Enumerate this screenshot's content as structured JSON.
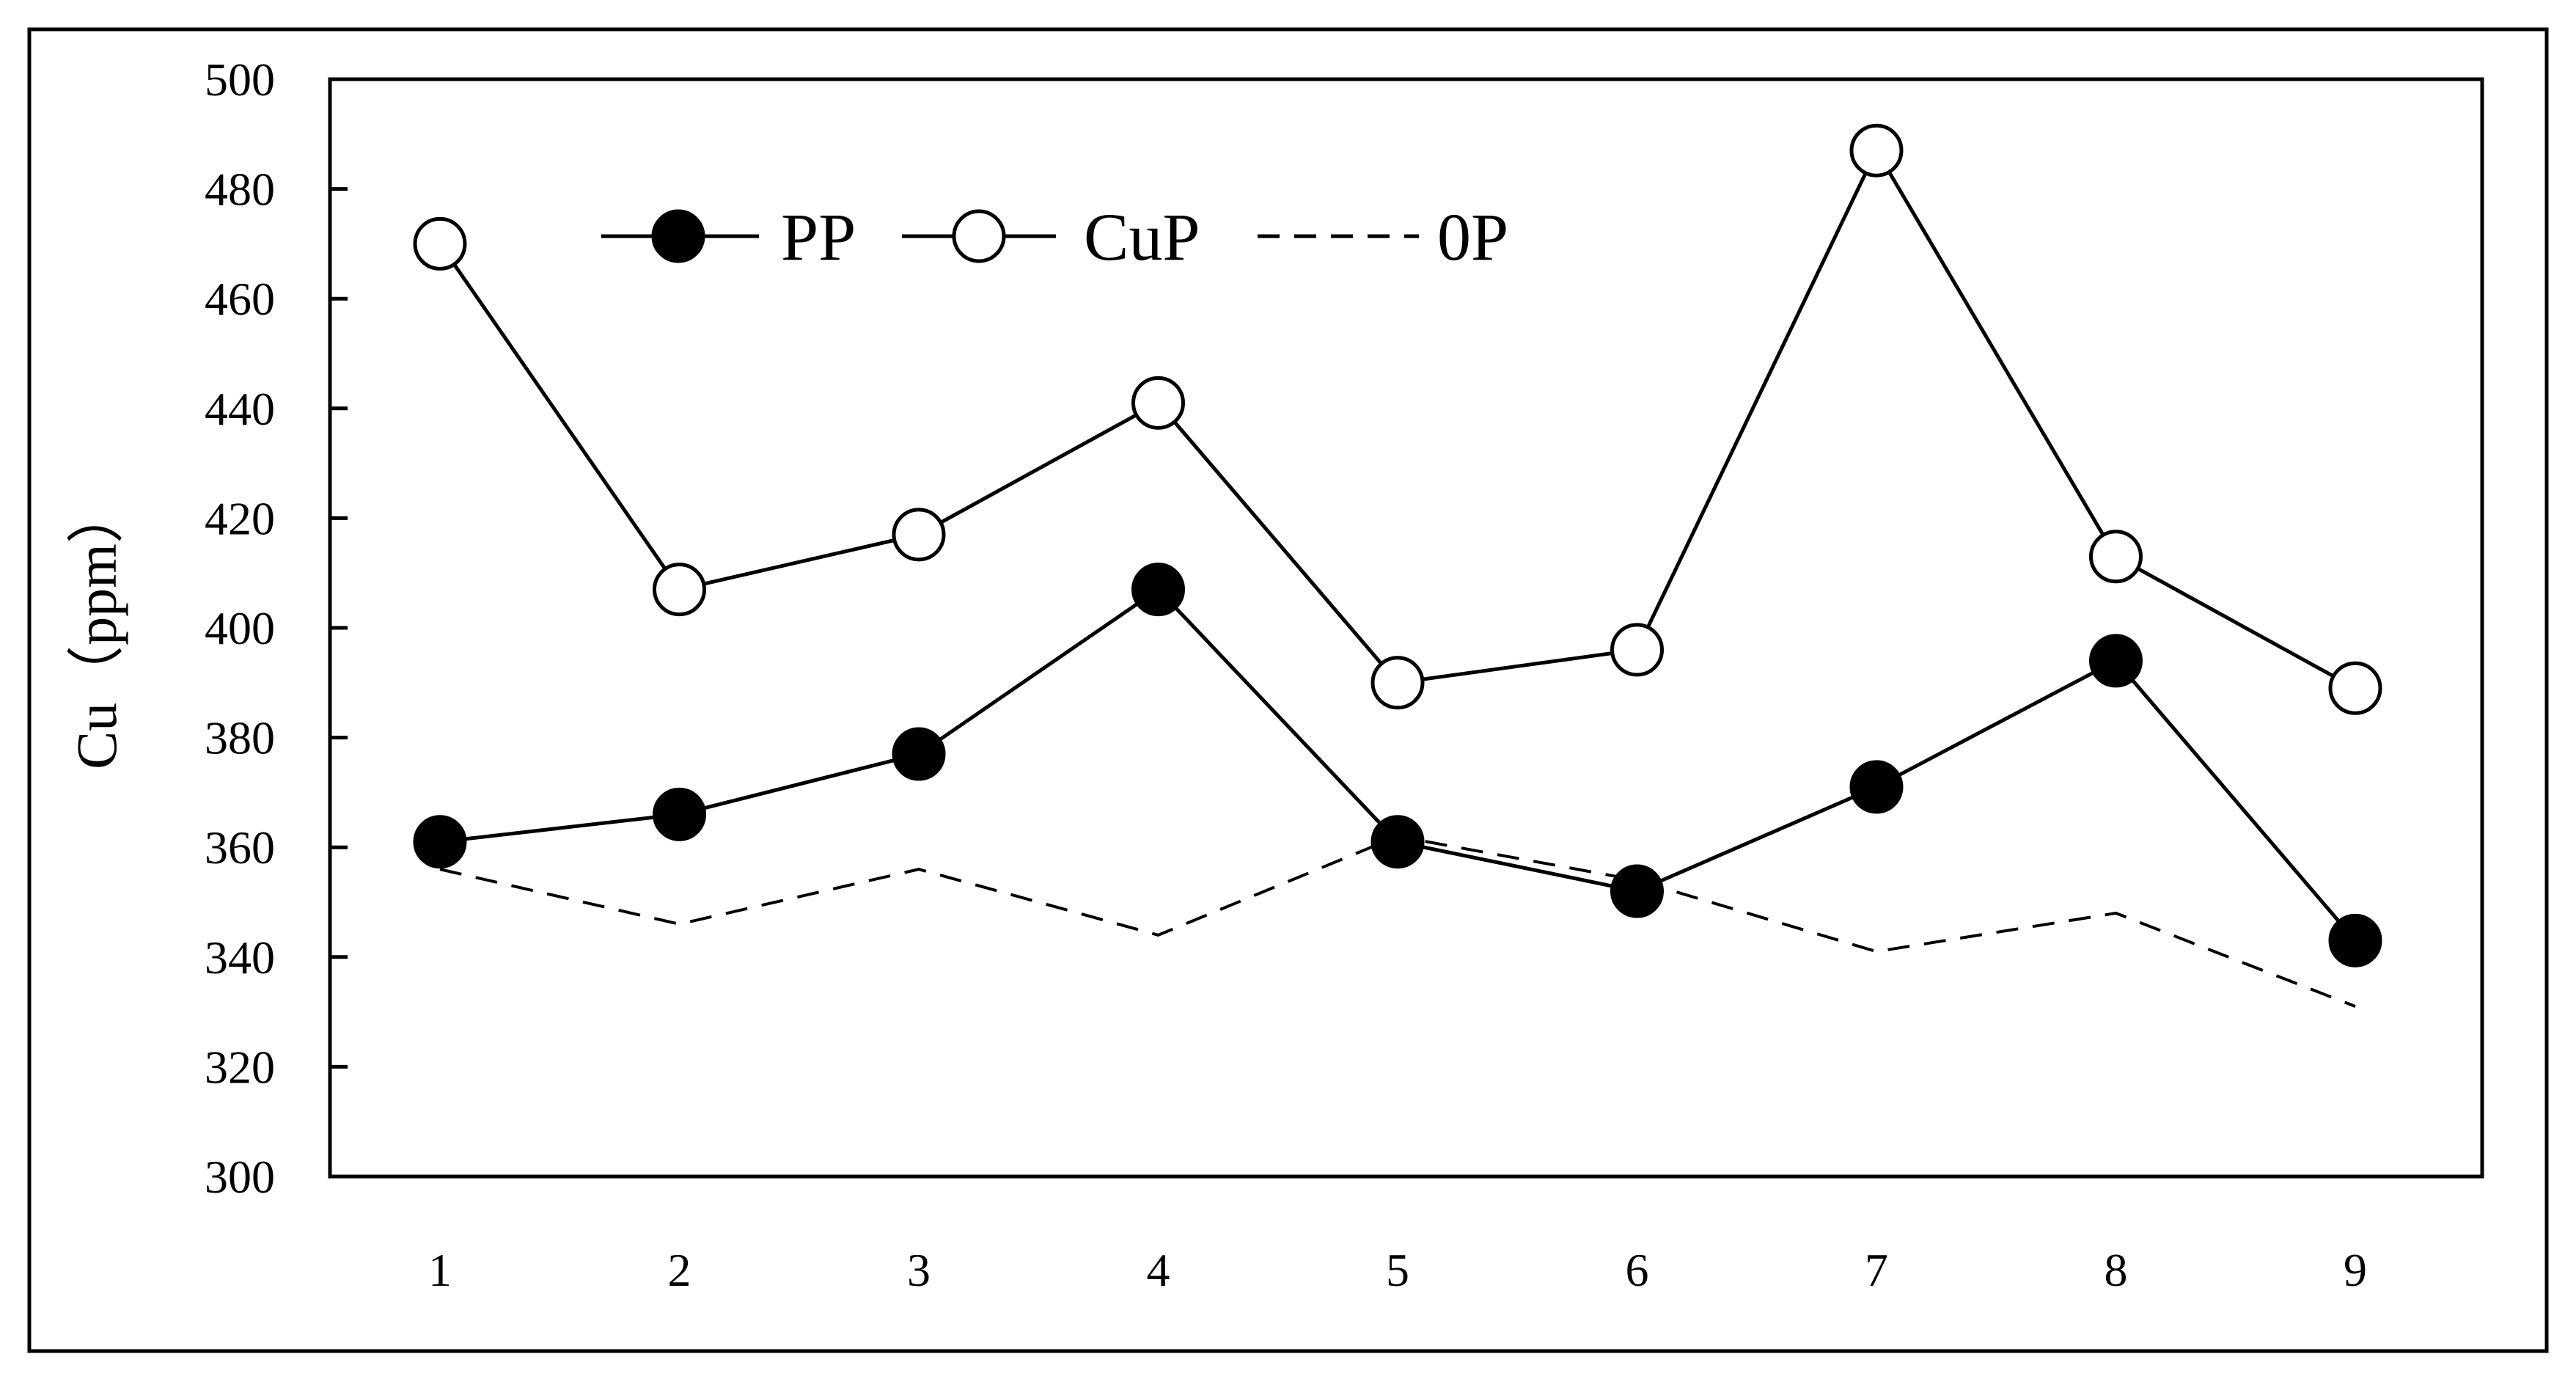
{
  "chart_data": {
    "type": "line",
    "title": "",
    "xlabel": "",
    "ylabel": "Cu（ppm）",
    "x": [
      1,
      2,
      3,
      4,
      5,
      6,
      7,
      8,
      9
    ],
    "xticks": [
      "1",
      "2",
      "3",
      "4",
      "5",
      "6",
      "7",
      "8",
      "9"
    ],
    "ylim": [
      300,
      500
    ],
    "yticks": [
      "300",
      "320",
      "340",
      "360",
      "380",
      "400",
      "420",
      "440",
      "460",
      "480",
      "500"
    ],
    "grid": false,
    "legend_position": "top-left",
    "series": [
      {
        "name": "PP",
        "marker": "filled-circle",
        "line": "solid",
        "values": [
          361,
          366,
          377,
          407,
          361,
          352,
          371,
          394,
          343
        ]
      },
      {
        "name": "CuP",
        "marker": "open-circle",
        "line": "solid",
        "values": [
          470,
          407,
          417,
          441,
          390,
          396,
          487,
          413,
          389
        ]
      },
      {
        "name": "0P",
        "marker": "none",
        "line": "dashed",
        "values": [
          356,
          346,
          356,
          344,
          362,
          354,
          341,
          348,
          331
        ]
      }
    ],
    "colors": {
      "line": "#000000",
      "background": "#ffffff"
    }
  }
}
